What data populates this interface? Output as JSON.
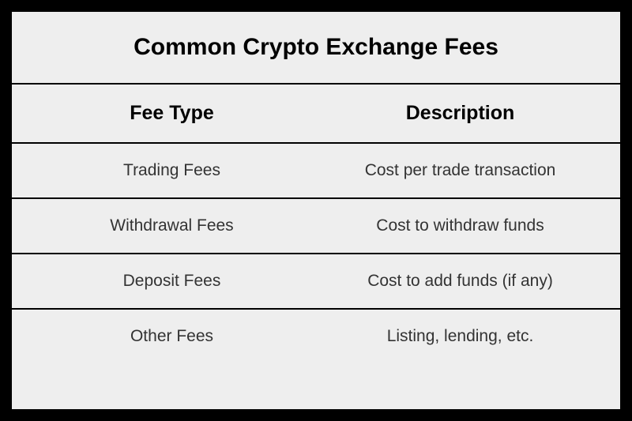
{
  "table": {
    "title": "Common Crypto Exchange Fees",
    "columns": [
      "Fee Type",
      "Description"
    ],
    "rows": [
      [
        "Trading Fees",
        "Cost per trade transaction"
      ],
      [
        "Withdrawal Fees",
        "Cost to withdraw funds"
      ],
      [
        "Deposit Fees",
        "Cost to add funds (if any)"
      ],
      [
        "Other Fees",
        "Listing, lending, etc."
      ]
    ],
    "styling": {
      "background_color": "#eeeeee",
      "border_color": "#000000",
      "outer_border_color": "#000000",
      "title_fontsize": 30,
      "header_fontsize": 25,
      "cell_fontsize": 21,
      "title_color": "#000000",
      "header_color": "#000000",
      "cell_color": "#333333",
      "border_width": 2
    }
  }
}
